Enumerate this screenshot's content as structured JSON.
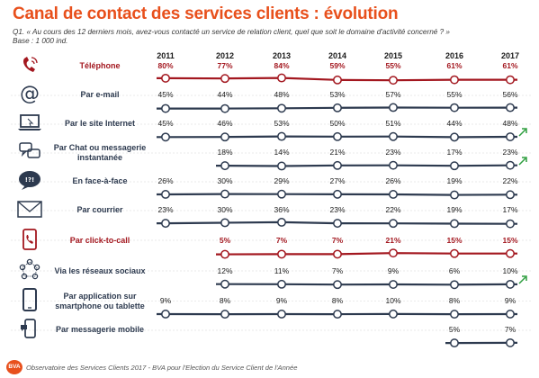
{
  "title": "Canal de contact des services clients : évolution",
  "question": "Q1. « Au cours des 12 derniers mois, avez-vous contacté un service de relation client, quel que soit le domaine d'activité concerné ? »",
  "base": "Base : 1 000 ind.",
  "footer": "Observatoire des Services Clients 2017 - BVA pour l'Election du Service Client de l'Année",
  "logo": "BVA",
  "colors": {
    "highlight": "#a3171f",
    "normal": "#2d3a4f",
    "title": "#e8501c",
    "trend": "#2e9e3f"
  },
  "chart_data": {
    "type": "line",
    "x": [
      "2011",
      "2012",
      "2013",
      "2014",
      "2015",
      "2016",
      "2017"
    ],
    "unit": "%",
    "series": [
      {
        "name": "Téléphone",
        "icon": "phone-icon",
        "highlight": true,
        "values": [
          80,
          77,
          84,
          59,
          55,
          61,
          61
        ]
      },
      {
        "name": "Par e-mail",
        "icon": "at-sign-icon",
        "highlight": false,
        "values": [
          45,
          44,
          48,
          53,
          57,
          55,
          56
        ]
      },
      {
        "name": "Par le site Internet",
        "icon": "laptop-icon",
        "highlight": false,
        "values": [
          45,
          46,
          53,
          50,
          51,
          44,
          48
        ],
        "trend_up": true
      },
      {
        "name": "Par Chat ou messagerie instantanée",
        "icon": "chat-bubbles-icon",
        "highlight": false,
        "values": [
          null,
          18,
          14,
          21,
          23,
          17,
          23
        ],
        "trend_up": true
      },
      {
        "name": "En face-à-face",
        "icon": "speech-bubble-icon",
        "highlight": false,
        "values": [
          26,
          30,
          29,
          27,
          26,
          19,
          22
        ]
      },
      {
        "name": "Par courrier",
        "icon": "envelope-icon",
        "highlight": false,
        "values": [
          23,
          30,
          36,
          23,
          22,
          19,
          17
        ]
      },
      {
        "name": "Par click-to-call",
        "icon": "click-to-call-icon",
        "highlight": true,
        "values": [
          null,
          5,
          7,
          7,
          21,
          15,
          15
        ]
      },
      {
        "name": "Via les réseaux sociaux",
        "icon": "social-network-icon",
        "highlight": false,
        "values": [
          null,
          12,
          11,
          7,
          9,
          6,
          10
        ],
        "trend_up": true
      },
      {
        "name": "Par application sur smartphone ou tablette",
        "icon": "smartphone-icon",
        "highlight": false,
        "values": [
          9,
          8,
          9,
          8,
          10,
          8,
          9
        ]
      },
      {
        "name": "Par messagerie mobile",
        "icon": "mobile-message-icon",
        "highlight": false,
        "values": [
          null,
          null,
          null,
          null,
          null,
          5,
          7
        ]
      }
    ]
  }
}
